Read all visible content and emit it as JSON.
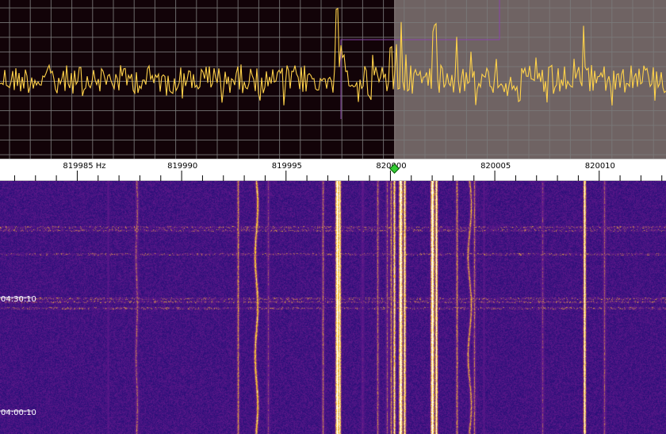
{
  "window": {
    "title": ""
  },
  "ruler": {
    "unit": "Hz",
    "labels": [
      {
        "freq": 819985,
        "text": "819985  Hz"
      },
      {
        "freq": 819990,
        "text": "819990"
      },
      {
        "freq": 819995,
        "text": "819995"
      },
      {
        "freq": 820000,
        "text": "820000"
      },
      {
        "freq": 820005,
        "text": "820005"
      },
      {
        "freq": 820010,
        "text": "820010"
      }
    ],
    "view_start_hz": 819981.3,
    "view_end_hz": 820013.2,
    "tuned_frequency_hz": 820000.2
  },
  "spectrum": {
    "passband_start_hz": 820000.2,
    "passband_end_hz": 820013.2,
    "trace_color": "#ffd24a",
    "background_color": "#120308",
    "passband_color": "#6f6363",
    "grid_color": "#7a7a7a"
  },
  "waterfall": {
    "time_labels": [
      {
        "id": "t1",
        "text": "04:30:10"
      },
      {
        "id": "t2",
        "text": "04:00:10"
      }
    ],
    "background_color": "#3a1587",
    "signal_color": "#ffd24a"
  },
  "icons": {
    "marker": "tuning-marker-icon"
  }
}
